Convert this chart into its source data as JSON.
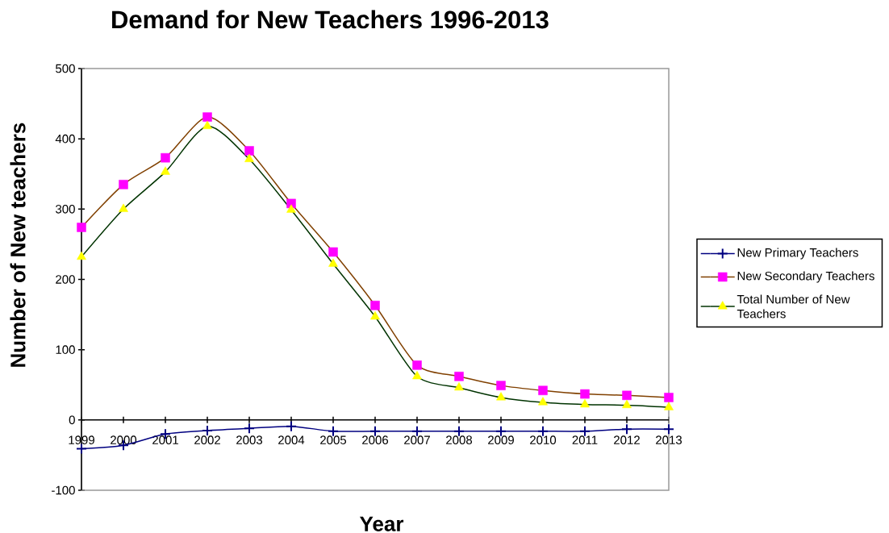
{
  "chart_data": {
    "type": "line",
    "title": "Demand for New Teachers 1996-2013",
    "xlabel": "Year",
    "ylabel": "Number of New teachers",
    "categories": [
      "1999",
      "2000",
      "2001",
      "2002",
      "2003",
      "2004",
      "2005",
      "2006",
      "2007",
      "2008",
      "2009",
      "2010",
      "2011",
      "2012",
      "2013"
    ],
    "ylim": [
      -100,
      500
    ],
    "yticks": [
      -100,
      0,
      100,
      200,
      300,
      400,
      500
    ],
    "legend": "right",
    "line_style": "solid",
    "series": [
      {
        "name": "New Primary Teachers",
        "color": "#000080",
        "marker": "cross",
        "values": [
          -41,
          -36,
          -20,
          -15,
          -12,
          -9,
          -16,
          -16,
          -16,
          -16,
          -16,
          -16,
          -16,
          -13,
          -13
        ]
      },
      {
        "name": "New Secondary Teachers",
        "color": "#804000",
        "marker": "square",
        "colors": [
          "#ff00ff",
          "#ff00ff",
          "#ff00ff",
          "#ff00ff",
          "#ff00ff",
          "#ff00ff",
          "#ff00ff",
          "#ff00ff",
          "#ff00ff",
          "#ff00ff",
          "#ff00ff",
          "#ff00ff",
          "#ff00ff",
          "#ff00ff",
          "#ff00ff"
        ],
        "values": [
          274,
          335,
          373,
          431,
          383,
          308,
          239,
          163,
          78,
          62,
          49,
          42,
          37,
          35,
          32
        ]
      },
      {
        "name": "Total Number of New Teachers",
        "color": "#003300",
        "marker": "triangle",
        "colors": [
          "#ffff00",
          "#ffff00",
          "#ffff00",
          "#ffff00",
          "#ffff00",
          "#ffff00",
          "#ffff00",
          "#ffff00",
          "#ffff00",
          "#ffff00",
          "#ffff00",
          "#ffff00",
          "#ffff00",
          "#ffff00",
          "#ffff00"
        ],
        "values": [
          232,
          300,
          353,
          418,
          371,
          299,
          222,
          147,
          62,
          46,
          32,
          25,
          22,
          21,
          18
        ]
      }
    ]
  }
}
